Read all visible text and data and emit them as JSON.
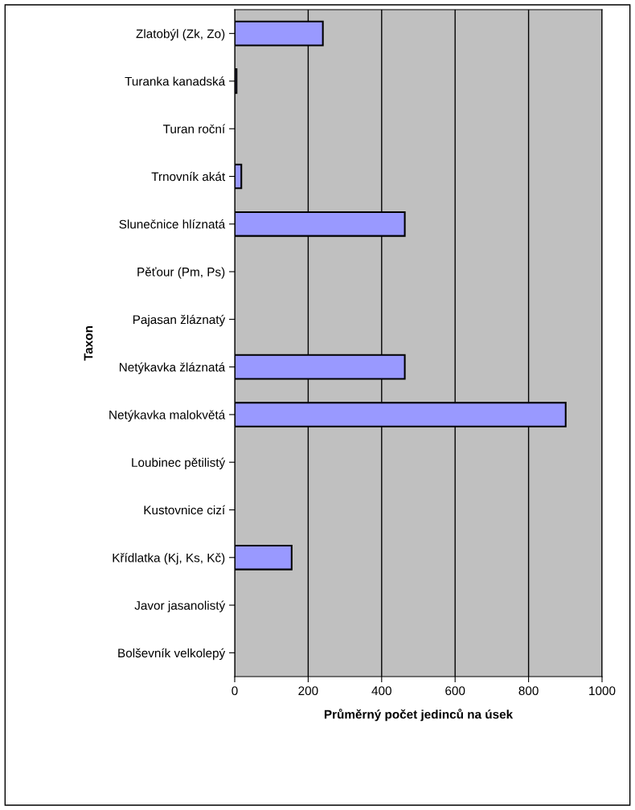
{
  "chart_data": {
    "type": "bar",
    "orientation": "horizontal",
    "xlabel": "Průměrný počet jedinců na úsek",
    "ylabel": "Taxon",
    "categories": [
      "Zlatobýl (Zk, Zo)",
      "Turanka kanadská",
      "Turan roční",
      "Trnovník akát",
      "Slunečnice hlíznatá",
      "Pěťour (Pm, Ps)",
      "Pajasan žláznatý",
      "Netýkavka žláznatá",
      "Netýkavka malokvětá",
      "Loubinec pětilistý",
      "Kustovnice cizí",
      "Křídlatka (Kj, Ks, Kč)",
      "Javor jasanolistý",
      "Bolševník velkolepý"
    ],
    "values": [
      240,
      5,
      null,
      18,
      463,
      null,
      null,
      463,
      901,
      null,
      null,
      155,
      null,
      null
    ],
    "color": "#9999ff",
    "xlim": [
      0,
      1000
    ],
    "xticks": [
      0,
      200,
      400,
      600,
      800,
      1000
    ],
    "grid": "x",
    "legend": false
  }
}
